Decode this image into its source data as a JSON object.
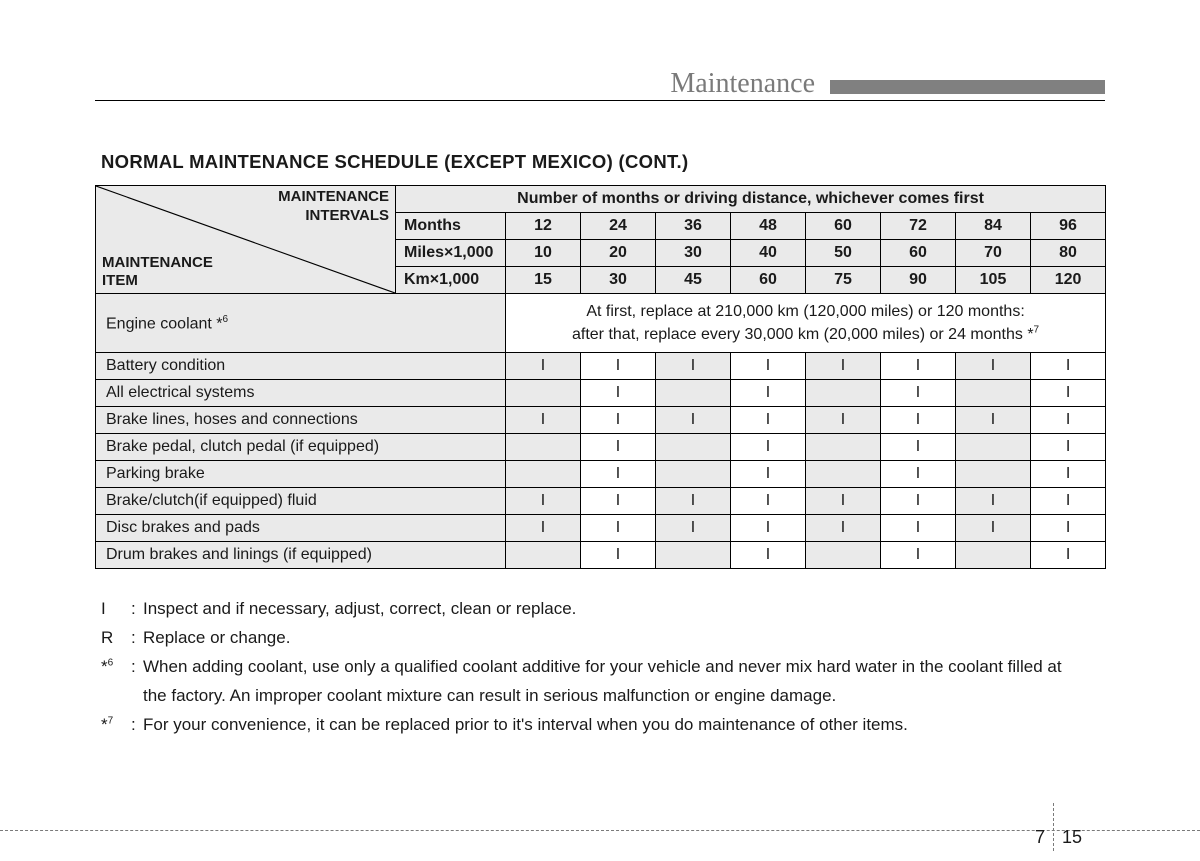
{
  "header": {
    "section_label": "Maintenance",
    "label_color": "#7a7a7a",
    "bar_color": "#808080",
    "rule_color": "#000000"
  },
  "title": "NORMAL MAINTENANCE SCHEDULE (EXCEPT MEXICO) (CONT.)",
  "table": {
    "diag_top": "MAINTENANCE\nINTERVALS",
    "diag_bottom": "MAINTENANCE\nITEM",
    "header_span": "Number of months or driving distance, whichever comes first",
    "unit_rows": [
      {
        "label": "Months",
        "values": [
          "12",
          "24",
          "36",
          "48",
          "60",
          "72",
          "84",
          "96"
        ]
      },
      {
        "label": "Miles×1,000",
        "values": [
          "10",
          "20",
          "30",
          "40",
          "50",
          "60",
          "70",
          "80"
        ]
      },
      {
        "label": "Km×1,000",
        "values": [
          "15",
          "30",
          "45",
          "60",
          "75",
          "90",
          "105",
          "120"
        ]
      }
    ],
    "coolant_row": {
      "label_html": "Engine coolant *",
      "label_sup": "6",
      "note_line1": "At first, replace at 210,000 km (120,000 miles) or 120 months:",
      "note_line2_a": "after that, replace every 30,000 km (20,000 miles) or 24 months *",
      "note_line2_sup": "7"
    },
    "items": [
      {
        "label": "Battery condition",
        "cells": [
          "I",
          "I",
          "I",
          "I",
          "I",
          "I",
          "I",
          "I"
        ]
      },
      {
        "label": "All electrical systems",
        "cells": [
          "",
          "I",
          "",
          "I",
          "",
          "I",
          "",
          "I"
        ]
      },
      {
        "label": "Brake lines, hoses and connections",
        "cells": [
          "I",
          "I",
          "I",
          "I",
          "I",
          "I",
          "I",
          "I"
        ]
      },
      {
        "label": "Brake pedal, clutch pedal (if equipped)",
        "cells": [
          "",
          "I",
          "",
          "I",
          "",
          "I",
          "",
          "I"
        ]
      },
      {
        "label": "Parking brake",
        "cells": [
          "",
          "I",
          "",
          "I",
          "",
          "I",
          "",
          "I"
        ]
      },
      {
        "label": "Brake/clutch(if equipped) fluid",
        "cells": [
          "I",
          "I",
          "I",
          "I",
          "I",
          "I",
          "I",
          "I"
        ]
      },
      {
        "label": "Disc brakes and pads",
        "cells": [
          "I",
          "I",
          "I",
          "I",
          "I",
          "I",
          "I",
          "I"
        ]
      },
      {
        "label": "Drum brakes and linings (if equipped)",
        "cells": [
          "",
          "I",
          "",
          "I",
          "",
          "I",
          "",
          "I"
        ]
      }
    ],
    "shade_color": "#eaeaea",
    "border_color": "#000000",
    "col_widths": {
      "item": 300,
      "unit_label": 110,
      "value": 75
    }
  },
  "legend": {
    "lines": [
      {
        "key": "I",
        "text": "Inspect and if necessary, adjust, correct, clean or replace."
      },
      {
        "key": "R",
        "text": "Replace or change."
      }
    ],
    "footnotes": [
      {
        "sup": "6",
        "text": "When adding coolant, use only a qualified coolant additive for your vehicle and never mix hard water in the coolant filled at",
        "cont": "the factory. An improper coolant mixture can result in serious malfunction or engine damage."
      },
      {
        "sup": "7",
        "text": "For your convenience, it can be replaced prior to it's interval when you do maintenance of other items."
      }
    ]
  },
  "page_number": {
    "chapter": "7",
    "page": "15"
  }
}
